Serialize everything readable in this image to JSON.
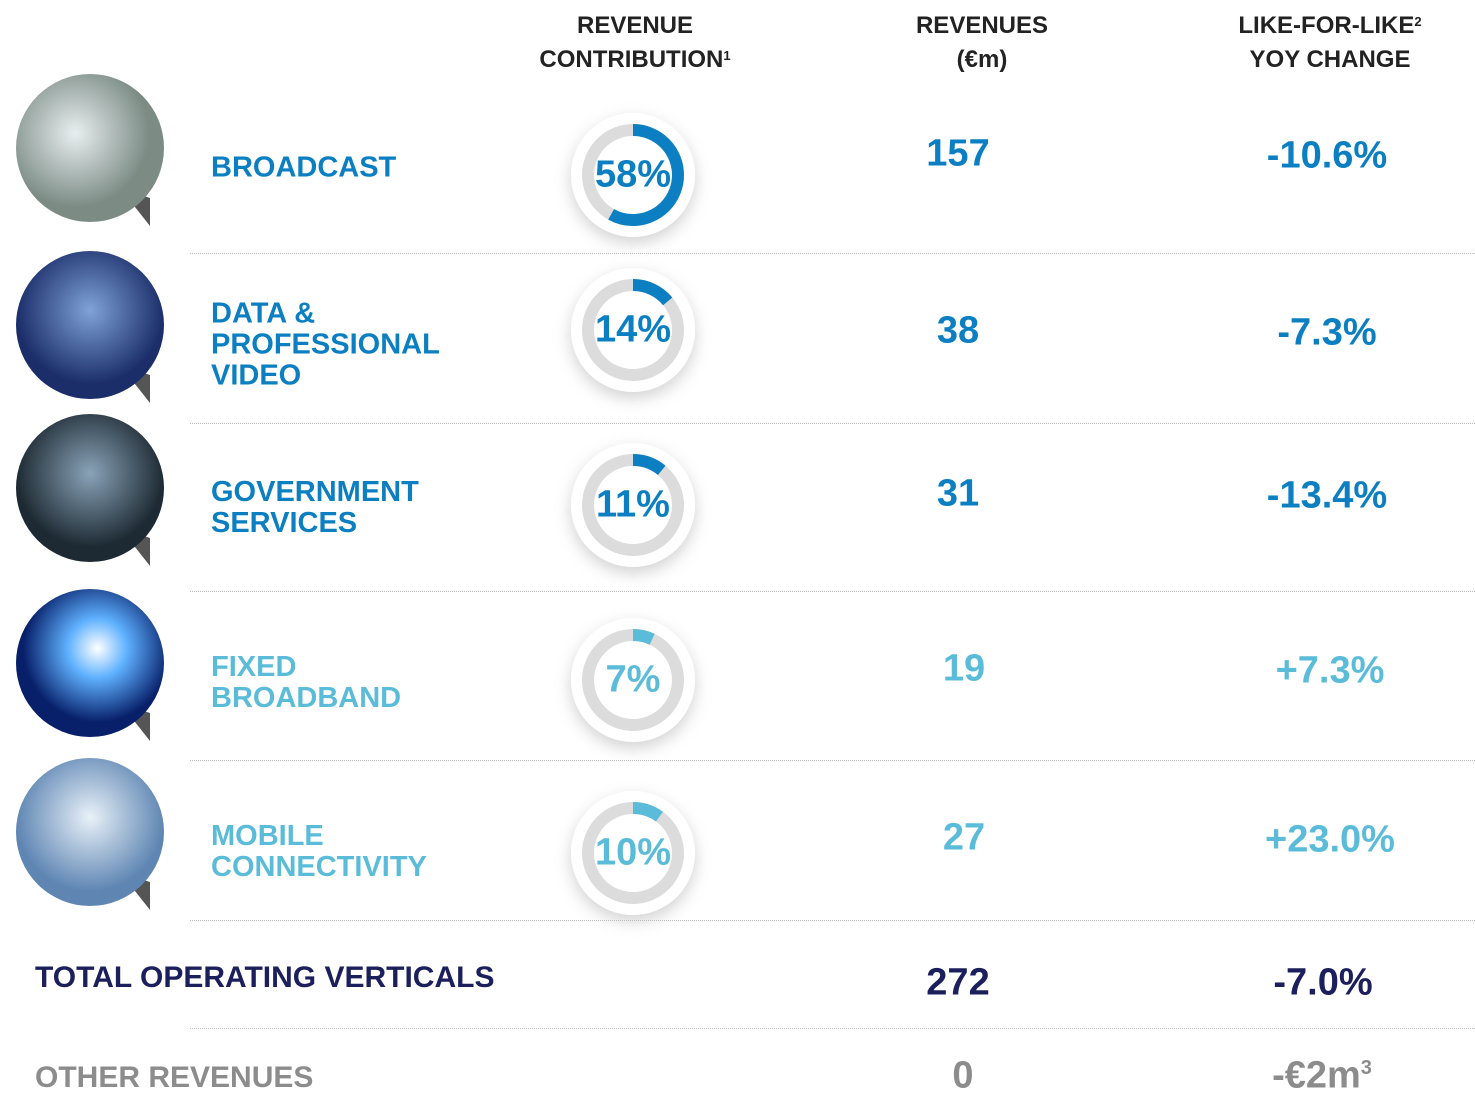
{
  "header": [
    {
      "lines": [
        {
          "text": "REVENUE"
        },
        {
          "text": "CONTRIBUTION",
          "note": "1"
        }
      ]
    },
    {
      "lines": [
        {
          "text": "REVENUES"
        },
        {
          "text": "(€m)"
        }
      ]
    },
    {
      "lines": [
        {
          "text": "LIKE-FOR-LIKE",
          "note": "2"
        },
        {
          "text": "YOY CHANGE"
        }
      ]
    }
  ],
  "rows": [
    {
      "name": [
        "BROADCAST"
      ],
      "contribution": {
        "value": 58,
        "label": "58%"
      },
      "revenue": 157,
      "change": "-10.6%"
    },
    {
      "name": [
        "DATA &",
        "PROFESSIONAL",
        "VIDEO"
      ],
      "contribution": {
        "value": 14,
        "label": "14%"
      },
      "revenue": 38,
      "change": "-7.3%"
    },
    {
      "name": [
        "GOVERNMENT",
        "SERVICES"
      ],
      "contribution": {
        "value": 11,
        "label": "11%"
      },
      "revenue": 31,
      "change": "-13.4%"
    },
    {
      "name": [
        "FIXED",
        "BROADBAND"
      ],
      "contribution": {
        "value": 7,
        "label": "7%"
      },
      "revenue": 19,
      "change": "+7.3%"
    },
    {
      "name": [
        "MOBILE",
        "CONNECTIVITY"
      ],
      "contribution": {
        "value": 10,
        "label": "10%"
      },
      "revenue": 27,
      "change": "+23.0%"
    }
  ],
  "total": {
    "name": "TOTAL OPERATING VERTICALS",
    "revenue": 272,
    "change": "-7.0%"
  },
  "other": {
    "name": "OTHER REVENUES",
    "revenue": 0,
    "change": "-€2m",
    "note": "3"
  }
}
